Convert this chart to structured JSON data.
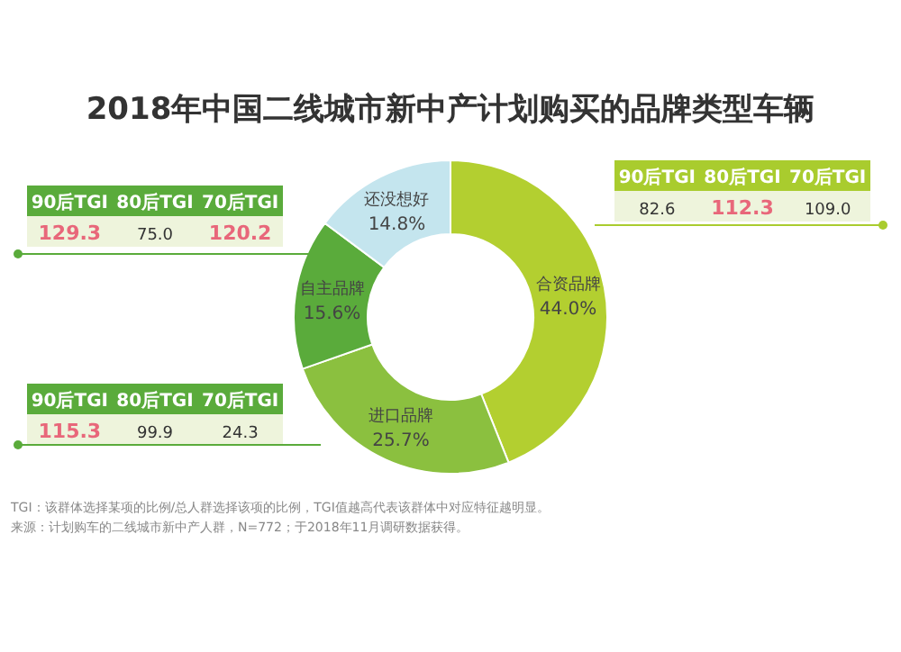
{
  "chart_data": {
    "type": "donut",
    "title": "2018年中国二线城市新中产计划购买的品牌类型车辆",
    "categories": [
      "合资品牌",
      "进口品牌",
      "自主品牌",
      "还没想好"
    ],
    "values": [
      44.0,
      25.7,
      15.6,
      14.8
    ],
    "value_labels": [
      "44.0%",
      "25.7%",
      "15.6%",
      "14.8%"
    ],
    "colors": [
      "#b3cf30",
      "#8bc03f",
      "#5aab3b",
      "#c4e5ee"
    ],
    "annotations": [
      "90后TGI",
      "80后TGI",
      "70后TGI",
      "129.3",
      "75.0",
      "120.2",
      "90后TGI",
      "80后TGI",
      "70后TGI",
      "115.3",
      "99.9",
      "24.3",
      "90后TGI",
      "80后TGI",
      "70后TGI",
      "82.6",
      "112.3",
      "109.0",
      "TGI：该群体选择某项的比例/总人群选择该项的比例，TGI值越高代表该群体中对应特征越明显。",
      "来源：计划购车的二线城市新中产人群，N=772；于2018年11月调研数据获得。"
    ]
  }
}
